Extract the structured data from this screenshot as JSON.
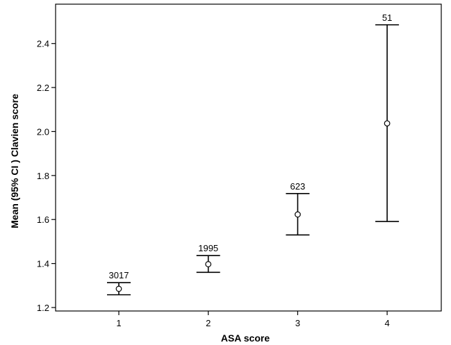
{
  "chart_data": {
    "type": "errorbar",
    "xlabel": "ASA score",
    "ylabel": "Mean (95% CI ) Clavien score",
    "categories": [
      "1",
      "2",
      "3",
      "4"
    ],
    "ylim": [
      1.2,
      2.5
    ],
    "yticks": [
      "1.2",
      "1.4",
      "1.6",
      "1.8",
      "2.0",
      "2.2",
      "2.4"
    ],
    "series": [
      {
        "means": [
          1.285,
          1.397,
          1.623,
          2.037
        ],
        "ci_lower": [
          1.258,
          1.36,
          1.53,
          1.591
        ],
        "ci_upper": [
          1.313,
          1.436,
          1.718,
          2.485
        ],
        "counts": [
          "3017",
          "1995",
          "623",
          "51"
        ]
      }
    ],
    "grid": false,
    "legend": "none"
  }
}
